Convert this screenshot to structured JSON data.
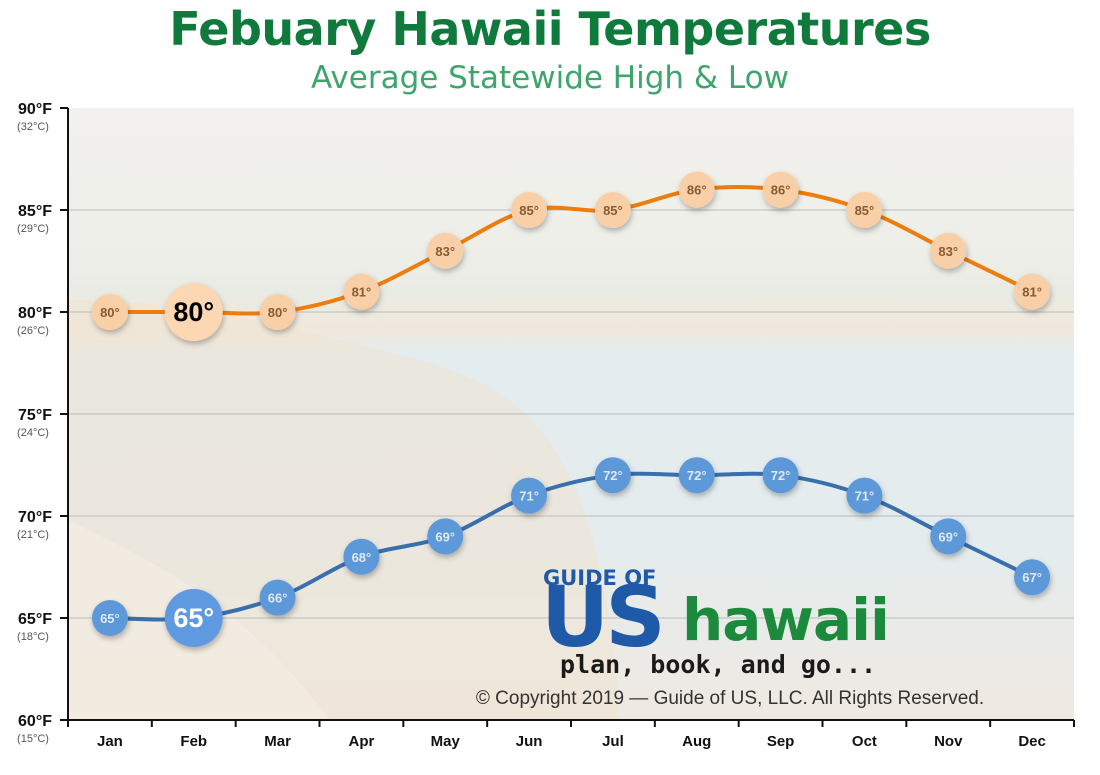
{
  "colors": {
    "title": "#0f7a3c",
    "subtitle": "#3ea56b",
    "high_line": "#ee7d0f",
    "high_marker": "#f8cfa6",
    "low_line": "#3a6fae",
    "low_marker": "#5d98d8",
    "logo_blue": "#1f5aa8",
    "logo_green": "#1c8a3c"
  },
  "logo": {
    "top": "GUIDE OF",
    "us": "US",
    "hawaii": "hawaii",
    "tagline": "plan, book, and go..."
  },
  "copyright": "© Copyright 2019 — Guide of US, LLC. All Rights Reserved.",
  "chart_data": {
    "type": "line",
    "title": "Febuary Hawaii Temperatures",
    "subtitle": "Average Statewide High & Low",
    "categories": [
      "Jan",
      "Feb",
      "Mar",
      "Apr",
      "May",
      "Jun",
      "Jul",
      "Aug",
      "Sep",
      "Oct",
      "Nov",
      "Dec"
    ],
    "highlight_category": "Feb",
    "ylim": [
      60,
      90
    ],
    "yticks": [
      {
        "value": 90,
        "f": "90°F",
        "c": "(32°C)"
      },
      {
        "value": 85,
        "f": "85°F",
        "c": "(29°C)"
      },
      {
        "value": 80,
        "f": "80°F",
        "c": "(26°C)"
      },
      {
        "value": 75,
        "f": "75°F",
        "c": "(24°C)"
      },
      {
        "value": 70,
        "f": "70°F",
        "c": "(21°C)"
      },
      {
        "value": 65,
        "f": "65°F",
        "c": "(18°C)"
      },
      {
        "value": 60,
        "f": "60°F",
        "c": "(15°C)"
      }
    ],
    "grid": true,
    "series": [
      {
        "key": "high",
        "values": [
          80,
          80,
          80,
          81,
          83,
          85,
          85,
          86,
          86,
          85,
          83,
          81
        ]
      },
      {
        "key": "low",
        "values": [
          65,
          65,
          66,
          68,
          69,
          71,
          72,
          72,
          72,
          71,
          69,
          67
        ]
      }
    ]
  }
}
